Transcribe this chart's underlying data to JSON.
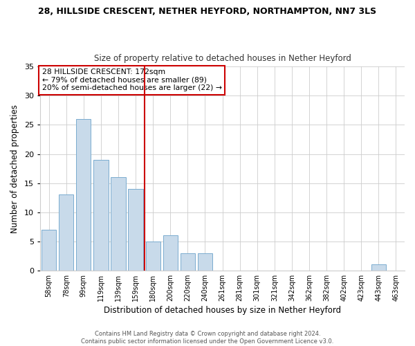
{
  "title": "28, HILLSIDE CRESCENT, NETHER HEYFORD, NORTHAMPTON, NN7 3LS",
  "subtitle": "Size of property relative to detached houses in Nether Heyford",
  "xlabel": "Distribution of detached houses by size in Nether Heyford",
  "ylabel": "Number of detached properties",
  "bar_labels": [
    "58sqm",
    "78sqm",
    "99sqm",
    "119sqm",
    "139sqm",
    "159sqm",
    "180sqm",
    "200sqm",
    "220sqm",
    "240sqm",
    "261sqm",
    "281sqm",
    "301sqm",
    "321sqm",
    "342sqm",
    "362sqm",
    "382sqm",
    "402sqm",
    "423sqm",
    "443sqm",
    "463sqm"
  ],
  "bar_values": [
    7,
    13,
    26,
    19,
    16,
    14,
    5,
    6,
    3,
    3,
    0,
    0,
    0,
    0,
    0,
    0,
    0,
    0,
    0,
    1,
    0
  ],
  "bar_color": "#c8daea",
  "bar_edge_color": "#7aaccf",
  "highlight_line_color": "#cc0000",
  "highlight_bar_index": 6,
  "ylim": [
    0,
    35
  ],
  "yticks": [
    0,
    5,
    10,
    15,
    20,
    25,
    30,
    35
  ],
  "annotation_title": "28 HILLSIDE CRESCENT: 172sqm",
  "annotation_line1": "← 79% of detached houses are smaller (89)",
  "annotation_line2": "20% of semi-detached houses are larger (22) →",
  "annotation_box_edge": "#cc0000",
  "footer_line1": "Contains HM Land Registry data © Crown copyright and database right 2024.",
  "footer_line2": "Contains public sector information licensed under the Open Government Licence v3.0.",
  "background_color": "#ffffff",
  "plot_background_color": "#ffffff"
}
